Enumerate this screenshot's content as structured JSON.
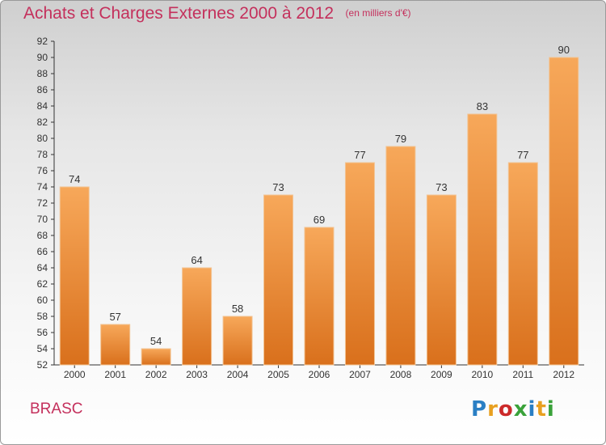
{
  "header": {
    "title": "Achats et Charges Externes 2000 à 2012",
    "unit": "(en milliers d'€)"
  },
  "footer": {
    "commune": "BRASC",
    "logo": "Proxiti",
    "logo_colors": [
      "#2a7fc4",
      "#e8a020",
      "#cc2a2a",
      "#3aa23a",
      "#2a7fc4",
      "#e8a020",
      "#3aa23a"
    ]
  },
  "colors": {
    "title": "#c4305c",
    "bar_top": "#f7a85a",
    "bar_bottom": "#d9701c",
    "bar_edge": "#f2c494",
    "axis": "#333333",
    "grid": "#e0e0e0"
  },
  "chart_data": {
    "type": "bar",
    "title": "Achats et Charges Externes 2000 à 2012",
    "subtitle": "(en milliers d'€)",
    "categories": [
      "2000",
      "2001",
      "2002",
      "2003",
      "2004",
      "2005",
      "2006",
      "2007",
      "2008",
      "2009",
      "2010",
      "2011",
      "2012"
    ],
    "values": [
      74,
      57,
      54,
      64,
      58,
      73,
      69,
      77,
      79,
      73,
      83,
      77,
      90
    ],
    "xlabel": "",
    "ylabel": "",
    "ylim": [
      52,
      92
    ],
    "yticks": [
      52,
      54,
      56,
      58,
      60,
      62,
      64,
      66,
      68,
      70,
      72,
      74,
      76,
      78,
      80,
      82,
      84,
      86,
      88,
      90,
      92
    ],
    "grid": false,
    "legend": "none"
  }
}
